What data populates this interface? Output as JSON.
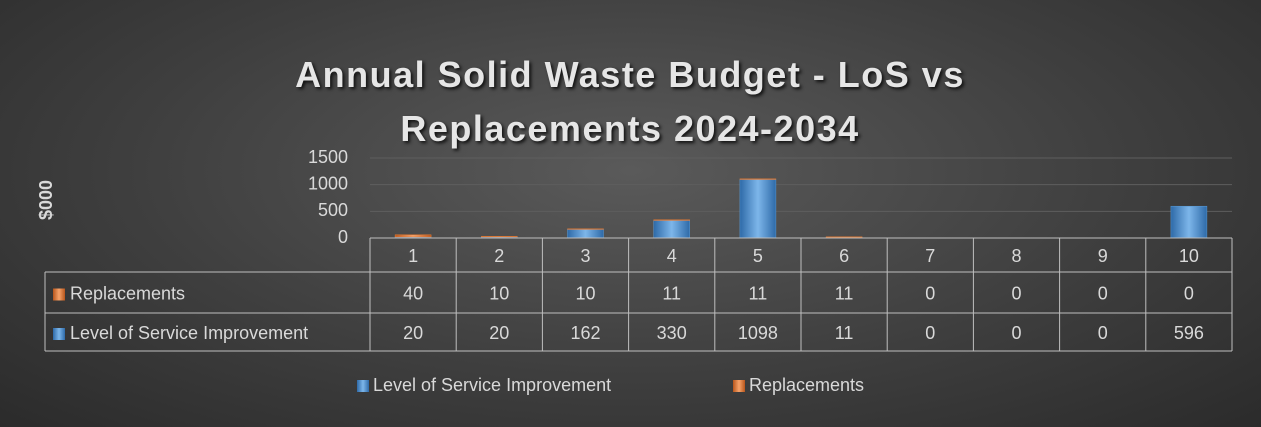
{
  "chart_data": {
    "type": "bar",
    "stacked": true,
    "title": "Annual Solid Waste Budget - LoS vs Replacements 2024-2034",
    "ylabel": "$000",
    "categories": [
      "1",
      "2",
      "3",
      "4",
      "5",
      "6",
      "7",
      "8",
      "9",
      "10"
    ],
    "series": [
      {
        "name": "Level of Service Improvement",
        "color": "#5b9bd5",
        "values": [
          20,
          20,
          162,
          330,
          1098,
          11,
          0,
          0,
          0,
          596
        ]
      },
      {
        "name": "Replacements",
        "color": "#ed7d31",
        "values": [
          40,
          10,
          10,
          11,
          11,
          11,
          0,
          0,
          0,
          0
        ]
      }
    ],
    "ylim": [
      0,
      1500
    ],
    "yticks": [
      0,
      500,
      1000,
      1500
    ],
    "grid": true,
    "data_table": true,
    "legend": "bottom"
  }
}
